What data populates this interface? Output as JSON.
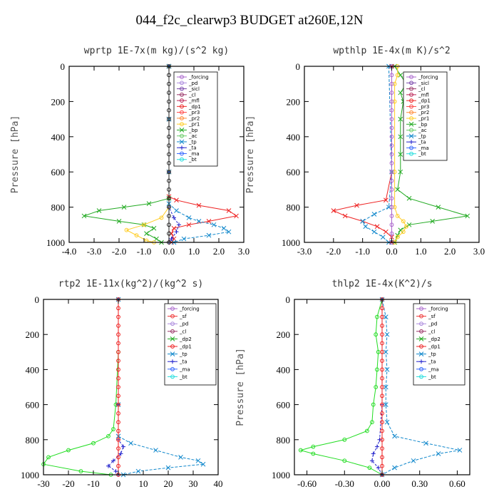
{
  "title": "044_f2c_clearwp3  BUDGET at260E,12N",
  "chart_data": [
    {
      "type": "line",
      "title": "wprtp  1E-7x(m kg)/(s^2 kg)",
      "ylabel": "Pressure [hPa]",
      "xlim": [
        -4.0,
        3.0
      ],
      "ylim": [
        1000,
        0
      ],
      "xticks": [
        -4.0,
        -3.0,
        -2.0,
        -1.0,
        0.0,
        1.0,
        2.0,
        3.0
      ],
      "xtick_labels": [
        "-4.0",
        "-3.0",
        "-2.0",
        "-1.0",
        "0.0",
        "1.0",
        "2.0",
        "3.0"
      ],
      "yticks": [
        0,
        200,
        400,
        600,
        800,
        1000
      ],
      "ytick_labels": [
        "0",
        "200",
        "400",
        "600",
        "800",
        "1000"
      ],
      "legend": [
        "_forcing",
        "_pd",
        "_sicl",
        "_cl",
        "_mfl",
        "_dp1",
        "_pr3",
        "_pr2",
        "_pr1",
        "_bp",
        "_ac",
        "_tp",
        "_ta",
        "_ma",
        "_bt"
      ],
      "legend_position": "top-right",
      "series": [
        {
          "name": "_bp",
          "color": "#22aa22",
          "marker": "x",
          "y": [
            0,
            300,
            600,
            750,
            780,
            800,
            820,
            850,
            880,
            900,
            920,
            950,
            980,
            1000
          ],
          "values": [
            0.0,
            0.0,
            0.0,
            0.0,
            -0.8,
            -1.8,
            -2.8,
            -3.4,
            -2.0,
            -1.0,
            -0.6,
            -0.9,
            -0.5,
            -0.3
          ]
        },
        {
          "name": "_dp1",
          "color": "#ee2222",
          "marker": "x",
          "y": [
            0,
            300,
            600,
            740,
            760,
            790,
            820,
            850,
            880,
            900,
            920,
            950,
            980,
            1000
          ],
          "values": [
            0.0,
            0.0,
            0.0,
            0.0,
            0.3,
            1.2,
            2.4,
            2.7,
            1.6,
            0.8,
            0.2,
            0.1,
            0.2,
            0.1
          ]
        },
        {
          "name": "_tp",
          "color": "#1188cc",
          "marker": "x",
          "y": [
            0,
            300,
            600,
            780,
            820,
            860,
            880,
            900,
            920,
            940,
            960,
            980,
            1000
          ],
          "values": [
            0.0,
            0.0,
            0.0,
            0.0,
            0.3,
            0.8,
            1.2,
            1.8,
            2.2,
            2.4,
            1.6,
            0.6,
            0.2
          ]
        },
        {
          "name": "_pr1",
          "color": "#ffcc22",
          "marker": "o",
          "y": [
            0,
            600,
            800,
            860,
            900,
            930,
            960,
            990,
            1000
          ],
          "values": [
            0.0,
            0.0,
            0.0,
            -0.3,
            -1.0,
            -1.7,
            -1.3,
            -0.9,
            -0.6
          ]
        },
        {
          "name": "_ta",
          "color": "#2222cc",
          "marker": "+",
          "y": [
            0,
            600,
            800,
            860,
            900,
            940,
            980,
            1000
          ],
          "values": [
            0.0,
            0.0,
            0.0,
            0.2,
            0.4,
            0.3,
            0.1,
            0.0
          ]
        },
        {
          "name": "_forcing",
          "color": "#222222",
          "marker": "o",
          "y": [
            0,
            50,
            100,
            150,
            200,
            250,
            300,
            350,
            400,
            450,
            500,
            550,
            600,
            650,
            700,
            750,
            800,
            850,
            900,
            950,
            1000
          ],
          "values": [
            0,
            0,
            0,
            0,
            0,
            0,
            0,
            0,
            0,
            0,
            0,
            0,
            0,
            0,
            0,
            0,
            0,
            0,
            0,
            0,
            0
          ]
        }
      ]
    },
    {
      "type": "line",
      "title": "wpthlp  1E-4x(m K)/s^2",
      "ylabel": "Pressure [hPa]",
      "xlim": [
        -3.0,
        3.0
      ],
      "ylim": [
        1000,
        0
      ],
      "xticks": [
        -3.0,
        -2.0,
        -1.0,
        0.0,
        1.0,
        2.0,
        3.0
      ],
      "xtick_labels": [
        "-3.0",
        "-2.0",
        "-1.0",
        "0.0",
        "1.0",
        "2.0",
        "3.0"
      ],
      "yticks": [
        0,
        200,
        400,
        600,
        800,
        1000
      ],
      "ytick_labels": [
        "0",
        "200",
        "400",
        "600",
        "800",
        "1000"
      ],
      "legend": [
        "_forcing",
        "_sicl",
        "_cl",
        "_mfl",
        "_dp1",
        "_pr3",
        "_pr2",
        "_pr1",
        "_bp",
        "_ac",
        "_tp",
        "_ta",
        "_ma",
        "_bt"
      ],
      "legend_position": "top-right",
      "series": [
        {
          "name": "_bp",
          "color": "#22aa22",
          "marker": "x",
          "y": [
            0,
            50,
            100,
            150,
            200,
            300,
            400,
            500,
            600,
            700,
            750,
            800,
            850,
            880,
            900,
            930,
            960,
            1000
          ],
          "values": [
            0.1,
            0.3,
            0.5,
            0.3,
            0.4,
            0.3,
            0.3,
            0.3,
            0.3,
            0.2,
            0.6,
            1.6,
            2.6,
            1.4,
            0.6,
            0.3,
            0.2,
            0.1
          ]
        },
        {
          "name": "_dp1",
          "color": "#ee2222",
          "marker": "x",
          "y": [
            0,
            600,
            760,
            790,
            820,
            850,
            880,
            910,
            940,
            970,
            1000
          ],
          "values": [
            0.0,
            0.0,
            -0.2,
            -1.2,
            -2.0,
            -1.6,
            -1.0,
            -0.5,
            -0.2,
            0.0,
            0.0
          ]
        },
        {
          "name": "_tp",
          "color": "#1188cc",
          "marker": "x",
          "y": [
            0,
            600,
            800,
            840,
            880,
            910,
            940,
            970,
            1000
          ],
          "values": [
            -0.1,
            0.0,
            -0.1,
            -0.6,
            -1.0,
            -0.9,
            -0.6,
            -0.3,
            -0.1
          ]
        },
        {
          "name": "_pr1",
          "color": "#ffcc22",
          "marker": "o",
          "y": [
            0,
            50,
            100,
            200,
            600,
            800,
            850,
            880,
            910,
            940,
            970,
            1000
          ],
          "values": [
            0.2,
            0.2,
            0.1,
            0.1,
            0.1,
            0.1,
            0.2,
            0.4,
            0.5,
            0.4,
            0.2,
            0.1
          ]
        },
        {
          "name": "_forcing",
          "color": "#aa66cc",
          "marker": "o",
          "y": [
            0,
            50,
            100,
            150,
            200,
            250,
            300,
            350,
            400,
            450,
            500,
            550,
            600,
            650,
            700,
            750,
            800,
            850,
            900,
            950,
            1000
          ],
          "values": [
            0,
            0,
            0,
            0,
            0,
            0,
            0,
            0,
            0,
            0,
            0,
            0,
            0,
            0,
            0,
            0,
            0,
            0,
            0,
            0,
            0
          ]
        }
      ]
    },
    {
      "type": "line",
      "title": "rtp2  1E-11x(kg^2)/(kg^2 s)",
      "ylabel": "Pressure [hPa]",
      "xlim": [
        -30,
        40
      ],
      "ylim": [
        1000,
        0
      ],
      "xticks": [
        -30,
        -20,
        -10,
        0,
        10,
        20,
        30,
        40
      ],
      "xtick_labels": [
        "-30",
        "-20",
        "-10",
        "0",
        "10",
        "20",
        "30",
        "40"
      ],
      "yticks": [
        0,
        200,
        400,
        600,
        800,
        1000
      ],
      "ytick_labels": [
        "0",
        "200",
        "400",
        "600",
        "800",
        "1000"
      ],
      "legend": [
        "_forcing",
        "_sf",
        "_pd",
        "_cl",
        "_dp2",
        "_dp1",
        "_tp",
        "_ta",
        "_ma",
        "_bt"
      ],
      "legend_position": "top-right",
      "series": [
        {
          "name": "_dp1",
          "color": "#22dd22",
          "marker": "o",
          "y": [
            0,
            300,
            600,
            740,
            780,
            820,
            860,
            900,
            940,
            980,
            1000
          ],
          "values": [
            0,
            0,
            -1,
            -2,
            -4,
            -10,
            -20,
            -28,
            -30,
            -15,
            -3
          ]
        },
        {
          "name": "_tp",
          "color": "#1188cc",
          "marker": "x",
          "y": [
            0,
            600,
            780,
            820,
            860,
            900,
            920,
            940,
            960,
            980,
            1000
          ],
          "values": [
            0,
            0,
            0,
            5,
            15,
            25,
            32,
            34,
            20,
            8,
            2
          ]
        },
        {
          "name": "_ta",
          "color": "#2222cc",
          "marker": "+",
          "y": [
            0,
            600,
            800,
            840,
            880,
            920,
            950,
            980,
            1000
          ],
          "values": [
            0,
            0,
            0,
            2,
            1,
            -2,
            -4,
            -1,
            0
          ]
        },
        {
          "name": "_forcing",
          "color": "#ee2222",
          "marker": "o",
          "y": [
            0,
            50,
            100,
            150,
            200,
            250,
            300,
            350,
            400,
            450,
            500,
            550,
            600,
            650,
            700,
            750,
            800,
            850,
            900,
            950,
            1000
          ],
          "values": [
            0,
            0,
            0,
            0,
            0,
            0,
            0,
            0,
            0,
            0,
            0,
            0,
            0,
            0,
            0,
            0,
            0,
            0,
            0,
            0,
            0
          ]
        }
      ]
    },
    {
      "type": "line",
      "title": "thlp2  1E-4x(K^2)/s",
      "ylabel": "Pressure [hPa]",
      "xlim": [
        -0.7,
        0.7
      ],
      "ylim": [
        1000,
        0
      ],
      "xticks": [
        -0.6,
        -0.3,
        0.0,
        0.3,
        0.6
      ],
      "xtick_labels": [
        "-0.60",
        "-0.30",
        "0.00",
        "0.30",
        "0.60"
      ],
      "yticks": [
        0,
        200,
        400,
        600,
        800,
        1000
      ],
      "ytick_labels": [
        "0",
        "200",
        "400",
        "600",
        "800",
        "1000"
      ],
      "legend": [
        "_forcing",
        "_sf",
        "_pd",
        "_cl",
        "_dp2",
        "_dp1",
        "_tp",
        "_ta",
        "_ma",
        "_bt"
      ],
      "legend_position": "top-right",
      "series": [
        {
          "name": "_dp1",
          "color": "#22dd22",
          "marker": "o",
          "y": [
            0,
            100,
            200,
            300,
            400,
            500,
            600,
            700,
            750,
            800,
            840,
            860,
            880,
            920,
            960,
            1000
          ],
          "values": [
            0,
            -0.04,
            -0.05,
            -0.03,
            -0.04,
            -0.05,
            -0.07,
            -0.08,
            -0.12,
            -0.3,
            -0.55,
            -0.65,
            -0.55,
            -0.3,
            -0.1,
            0
          ]
        },
        {
          "name": "_tp",
          "color": "#1188cc",
          "marker": "x",
          "y": [
            0,
            100,
            200,
            300,
            400,
            500,
            600,
            700,
            780,
            820,
            860,
            880,
            920,
            960,
            1000
          ],
          "values": [
            0,
            0.03,
            0.04,
            0.03,
            0.04,
            0.03,
            0.03,
            0.04,
            0.1,
            0.35,
            0.62,
            0.45,
            0.25,
            0.1,
            0
          ]
        },
        {
          "name": "_ta",
          "color": "#2222cc",
          "marker": "+",
          "y": [
            0,
            600,
            800,
            840,
            880,
            920,
            960,
            1000
          ],
          "values": [
            0,
            0,
            -0.02,
            -0.04,
            -0.07,
            -0.08,
            -0.03,
            0
          ]
        },
        {
          "name": "_forcing",
          "color": "#ee2222",
          "marker": "o",
          "y": [
            0,
            50,
            100,
            150,
            200,
            250,
            300,
            350,
            400,
            450,
            500,
            550,
            600,
            650,
            700,
            750,
            800,
            850,
            900,
            950,
            1000
          ],
          "values": [
            0,
            0,
            0,
            0,
            0,
            0,
            0,
            0,
            0,
            0,
            0,
            0,
            0,
            0,
            0,
            0,
            0,
            0,
            0,
            0,
            0
          ]
        }
      ]
    }
  ],
  "legend_colors": {
    "_forcing": "#aa66cc",
    "_pd": "#aa88dd",
    "_sicl": "#7744aa",
    "_cl": "#993366",
    "_mfl": "#bb2255",
    "_dp1": "#ee2222",
    "_pr3": "#ff4444",
    "_pr2": "#ff8833",
    "_pr1": "#ffcc22",
    "_bp": "#22aa22",
    "_ac": "#66cc66",
    "_tp": "#1188cc",
    "_ta": "#2222cc",
    "_ma": "#3366ff",
    "_bt": "#22dddd",
    "_sf": "#ee3333",
    "_dp2": "#22aa22"
  }
}
